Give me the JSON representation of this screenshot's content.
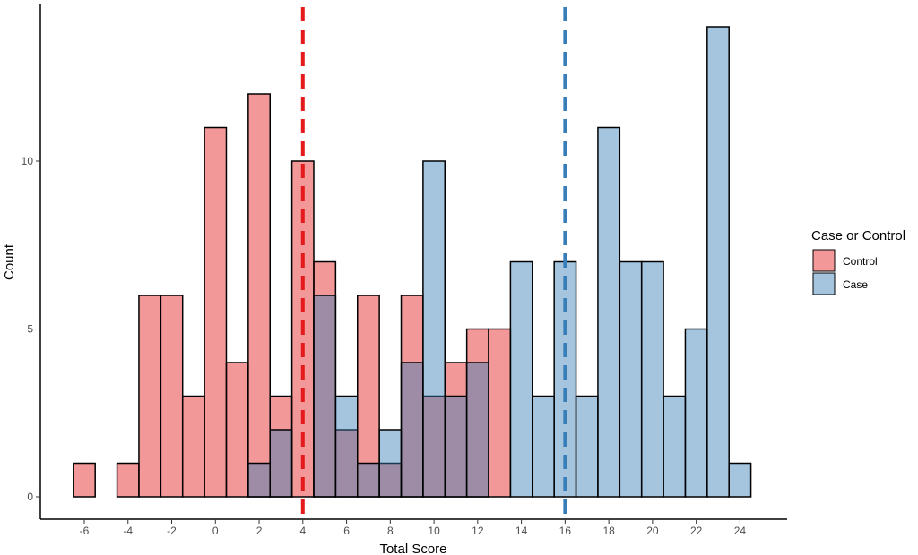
{
  "chart_data": {
    "type": "histogram",
    "xlabel": "Total Score",
    "ylabel": "Count",
    "xlim": [
      -7.5,
      25.5
    ],
    "ylim": [
      0,
      14.5
    ],
    "x_ticks": [
      -6,
      -4,
      -2,
      0,
      2,
      4,
      6,
      8,
      10,
      12,
      14,
      16,
      18,
      20,
      22,
      24
    ],
    "y_ticks": [
      0,
      5,
      10
    ],
    "bin_width": 1,
    "bin_centers": [
      -6,
      -5,
      -4,
      -3,
      -2,
      -1,
      0,
      1,
      2,
      3,
      4,
      5,
      6,
      7,
      8,
      9,
      10,
      11,
      12,
      13,
      14,
      15,
      16,
      17,
      18,
      19,
      20,
      21,
      22,
      23,
      24
    ],
    "series": [
      {
        "name": "Control",
        "color": "#E41A1C",
        "values": [
          1,
          0,
          1,
          6,
          6,
          3,
          11,
          4,
          12,
          3,
          10,
          7,
          2,
          6,
          1,
          6,
          3,
          4,
          5,
          5,
          0,
          0,
          0,
          0,
          0,
          0,
          0,
          0,
          0,
          0,
          0
        ]
      },
      {
        "name": "Case",
        "color": "#377EB8",
        "values": [
          0,
          0,
          0,
          0,
          0,
          0,
          0,
          0,
          1,
          2,
          0,
          6,
          3,
          1,
          2,
          4,
          10,
          3,
          4,
          0,
          7,
          3,
          7,
          3,
          11,
          7,
          7,
          3,
          5,
          14,
          1
        ]
      }
    ],
    "vlines": [
      {
        "series": "Control",
        "x": 4,
        "color": "#E41A1C",
        "style": "dashed"
      },
      {
        "series": "Case",
        "x": 16,
        "color": "#377EB8",
        "style": "dashed"
      }
    ],
    "fill_opacity": 0.45,
    "grid": false,
    "legend": {
      "title": "Case or Control",
      "position": "right",
      "entries": [
        "Control",
        "Case"
      ]
    }
  }
}
